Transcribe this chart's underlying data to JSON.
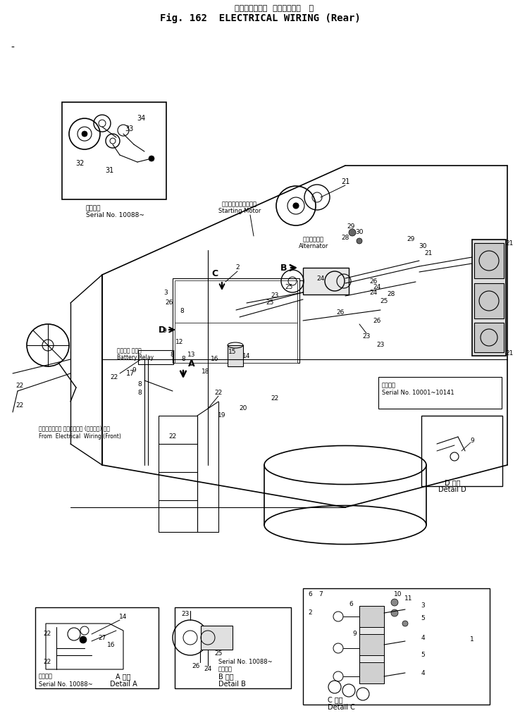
{
  "title_japanese": "エレクトリカル  ワイヤリング   後",
  "title_english": "Fig. 162  ELECTRICAL WIRING (Rear)",
  "background_color": "#ffffff",
  "line_color": "#000000",
  "fig_width": 7.38,
  "fig_height": 10.29,
  "dpi": 100,
  "labels": {
    "starting_motor_jp": "スターティングモータ",
    "starting_motor_en": "Starting Motor",
    "alternator_jp": "オルタネータ",
    "alternator_en": "Alternator",
    "battery_relay_jp": "バッテリ リレー",
    "battery_relay_en": "Battery Relay",
    "from_front_jp": "エレクトリカル ワイヤリング (フロント) から",
    "from_front_en": "From Electrical Wiring (Front)",
    "serial_10088": "適用号機\nSerial No. 10088~",
    "serial_10001_10141": "適用号機\nSerial No. 10001~10141",
    "detail_a_jp": "A 詳細",
    "detail_a_en": "Detail A",
    "detail_b_jp": "B 詳細",
    "detail_b_en": "Detail B",
    "detail_c_jp": "C 詳細",
    "detail_c_en": "Detail C",
    "detail_d_jp": "D 詳細",
    "detail_d_en": "Detail D",
    "serial_b": "適用号機\nSerial No. 10088~"
  }
}
